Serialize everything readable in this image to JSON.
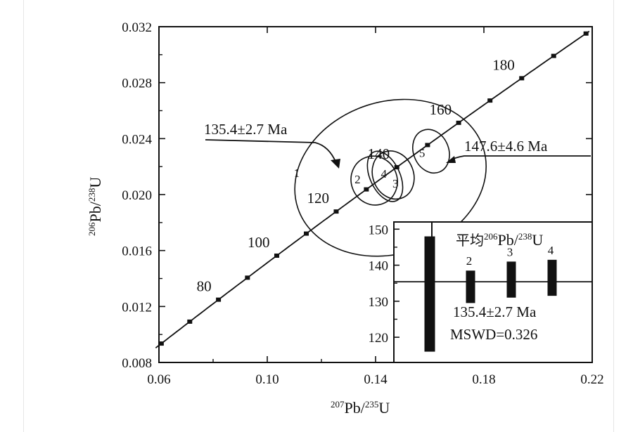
{
  "chart_data": {
    "type": "scatter",
    "subtype": "concordia",
    "xlim": [
      0.06,
      0.22
    ],
    "ylim": [
      0.008,
      0.032
    ],
    "xticks": [
      "0.06",
      "0.10",
      "0.14",
      "0.18",
      "0.22"
    ],
    "yticks": [
      "0.008",
      "0.012",
      "0.016",
      "0.020",
      "0.024",
      "0.028",
      "0.032"
    ],
    "xlabel": {
      "sup1": "207",
      "base1": "Pb/",
      "sup2": "235",
      "base2": "U"
    },
    "ylabel": {
      "sup1": "206",
      "base1": "Pb/",
      "sup2": "238",
      "base2": "U"
    },
    "concordia_ages": [
      60,
      70,
      80,
      90,
      100,
      110,
      120,
      130,
      140,
      150,
      160,
      170,
      180,
      190,
      200
    ],
    "age_labels": [
      {
        "age": 80,
        "text": "80"
      },
      {
        "age": 100,
        "text": "100"
      },
      {
        "age": 120,
        "text": "120"
      },
      {
        "age": 140,
        "text": "140"
      },
      {
        "age": 160,
        "text": "160"
      },
      {
        "age": 180,
        "text": "180"
      }
    ],
    "ellipses": [
      {
        "id": "1",
        "cx": 0.1455,
        "cy": 0.0212,
        "rx": 0.036,
        "ry": 0.0017,
        "angle_deg": 18
      },
      {
        "id": "2",
        "cx": 0.1395,
        "cy": 0.021,
        "rx": 0.0085,
        "ry": 0.00055,
        "angle_deg": 20
      },
      {
        "id": "3",
        "cx": 0.1465,
        "cy": 0.0214,
        "rx": 0.0075,
        "ry": 0.00055,
        "angle_deg": 22
      },
      {
        "id": "4",
        "cx": 0.1435,
        "cy": 0.0213,
        "rx": 0.0055,
        "ry": 0.0006,
        "angle_deg": 25
      },
      {
        "id": "5",
        "cx": 0.1605,
        "cy": 0.0231,
        "rx": 0.0065,
        "ry": 0.0005,
        "angle_deg": 22
      }
    ],
    "annotations": [
      {
        "text": "135.4±2.7 Ma"
      },
      {
        "text": "147.6±4.6 Ma"
      }
    ],
    "inset": {
      "title_prefix": "平均",
      "title_sup1": "206",
      "title_mid": "Pb/",
      "title_sup2": "238",
      "title_end": "U",
      "ylim": [
        113,
        152
      ],
      "yticks": [
        "150",
        "140",
        "130",
        "120"
      ],
      "mean": 135.4,
      "bars": [
        {
          "label": "",
          "center": 132,
          "low": 116,
          "high": 148,
          "tail": 152
        },
        {
          "label": "2",
          "center": 134,
          "low": 129.5,
          "high": 138.5
        },
        {
          "label": "3",
          "center": 136,
          "low": 131,
          "high": 141
        },
        {
          "label": "4",
          "center": 136.5,
          "low": 131.5,
          "high": 141.5
        }
      ],
      "result_text": "135.4±2.7 Ma",
      "mswd_text": "MSWD=0.326"
    }
  }
}
